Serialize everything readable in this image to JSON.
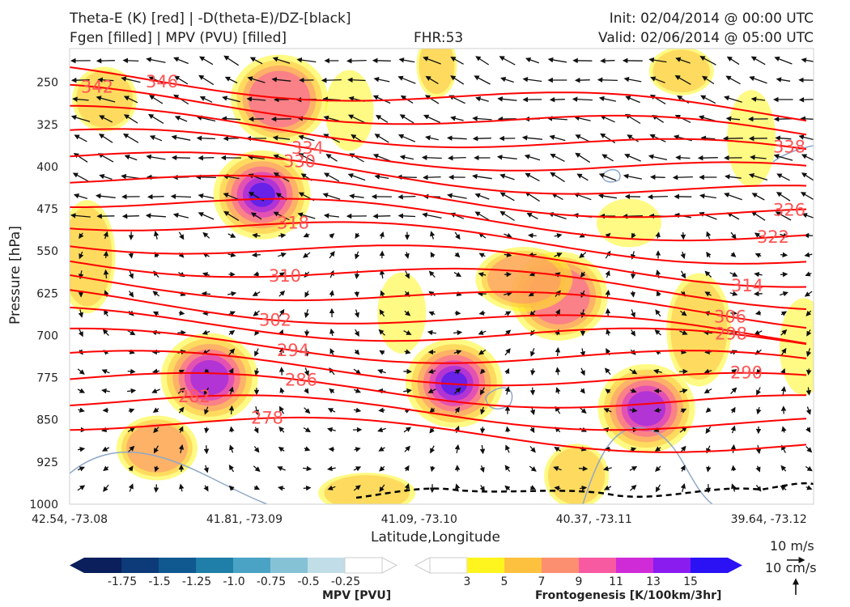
{
  "header": {
    "title_line1": "Theta-E (K) [red] | -D(theta-E)/DZ-[black]",
    "title_line2": "Fgen [filled] | MPV (PVU) [filled]",
    "fhr": "FHR:53",
    "init": "Init: 02/04/2014 @ 00:00 UTC",
    "valid": "Valid: 02/06/2014 @ 05:00 UTC"
  },
  "chart_data": {
    "type": "cross-section",
    "xlabel": "Latitude,Longitude",
    "ylabel": "Pressure [hPa]",
    "y_ticks": [
      250,
      325,
      400,
      475,
      550,
      625,
      700,
      775,
      850,
      925,
      1000
    ],
    "ylim": [
      1000,
      190
    ],
    "x_ticks": [
      "42.54, -73.08",
      "41.81, -73.09",
      "41.09, -73.10",
      "40.37, -73.11",
      "39.64, -73.12"
    ],
    "theta_e_contours": [
      {
        "label": "342",
        "level": 342
      },
      {
        "label": "346",
        "level": 346
      },
      {
        "label": "334",
        "level": 334
      },
      {
        "label": "330",
        "level": 330
      },
      {
        "label": "338",
        "level": 338
      },
      {
        "label": "326",
        "level": 326
      },
      {
        "label": "318",
        "level": 318
      },
      {
        "label": "322",
        "level": 322
      },
      {
        "label": "310",
        "level": 310
      },
      {
        "label": "314",
        "level": 314
      },
      {
        "label": "302",
        "level": 302
      },
      {
        "label": "306",
        "level": 306
      },
      {
        "label": "294",
        "level": 294
      },
      {
        "label": "298",
        "level": 298
      },
      {
        "label": "286",
        "level": 286
      },
      {
        "label": "282",
        "level": 282
      },
      {
        "label": "278",
        "level": 278
      },
      {
        "label": "290",
        "level": 290
      }
    ],
    "fgen_maxima": [
      {
        "lat_index": 1.1,
        "p": 450,
        "value": 15
      },
      {
        "lat_index": 0.8,
        "p": 775,
        "value": 13
      },
      {
        "lat_index": 2.2,
        "p": 785,
        "value": 15
      },
      {
        "lat_index": 2.8,
        "p": 630,
        "value": 9
      },
      {
        "lat_index": 3.3,
        "p": 830,
        "value": 13
      },
      {
        "lat_index": 1.2,
        "p": 280,
        "value": 9
      }
    ],
    "colors": {
      "theta_e": "#ff0000",
      "label": "#ff5555",
      "arrows": "#111111",
      "mpv_outline": "#8fa8c8"
    }
  },
  "mpv_colorbar": {
    "title": "MPV [PVU]",
    "labels": [
      "-1.75",
      "-1.5",
      "-1.25",
      "-1.0",
      "-0.75",
      "-0.5",
      "-0.25"
    ],
    "colors": [
      "#0a1f5c",
      "#0d3a78",
      "#0f5990",
      "#1f7fa8",
      "#4aa3c4",
      "#86c2d6",
      "#c1dde7",
      "#ffffff"
    ]
  },
  "fgen_colorbar": {
    "title": "Frontogenesis [K/100km/3hr]",
    "labels": [
      "3",
      "5",
      "7",
      "9",
      "11",
      "13",
      "15"
    ],
    "colors": [
      "#ffffff",
      "#fff51e",
      "#fdc13f",
      "#fc8f6f",
      "#f85aa2",
      "#cf2bd6",
      "#8b1cf0",
      "#2a12f5"
    ]
  },
  "wind_key": {
    "horizontal": "10 m/s",
    "vertical": "10 cm/s"
  }
}
